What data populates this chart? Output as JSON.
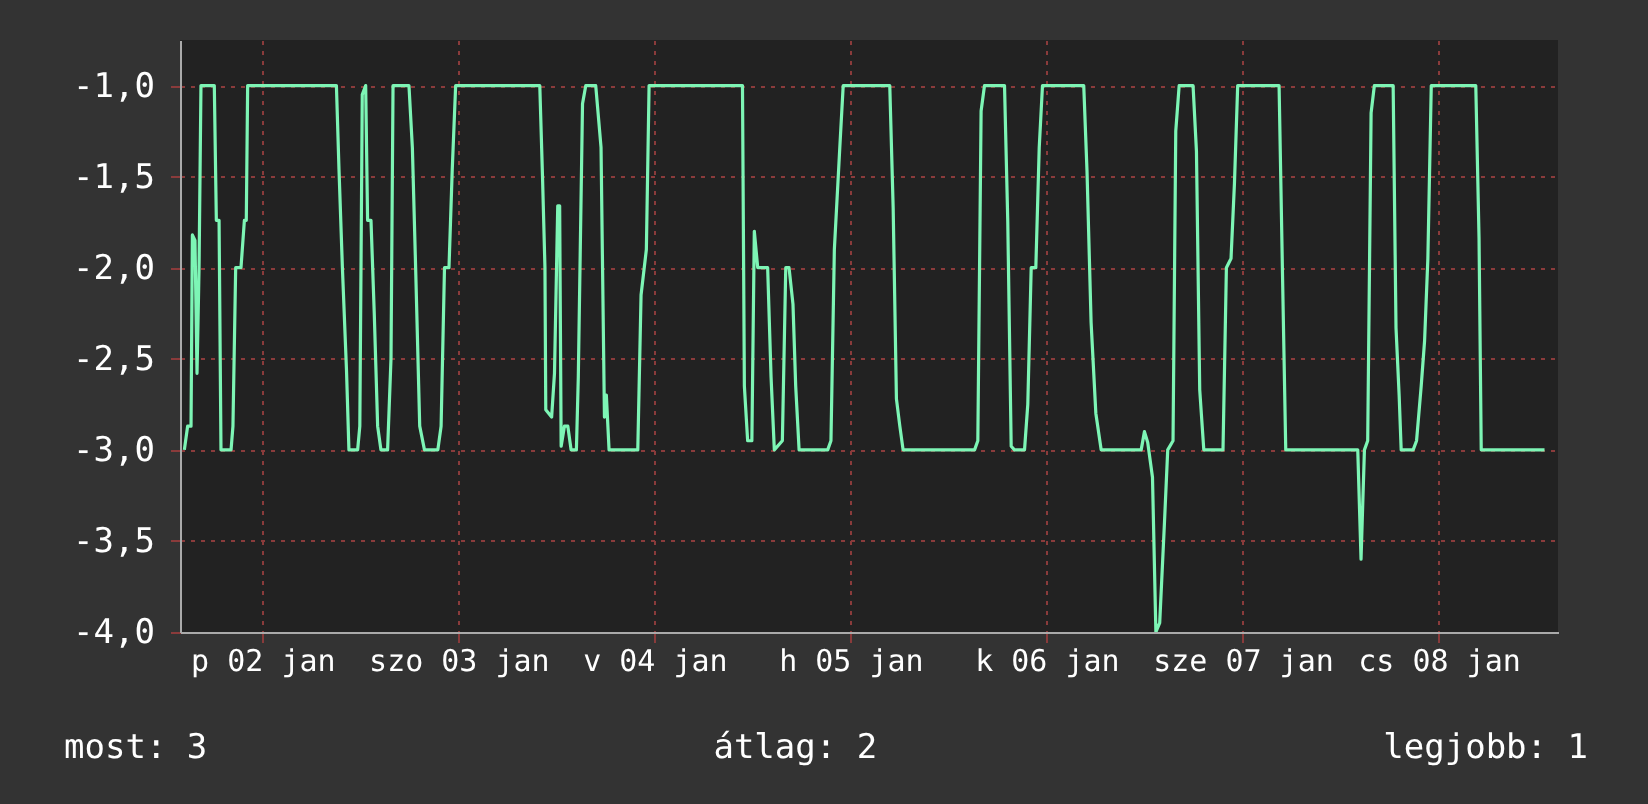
{
  "chart_data": {
    "type": "line",
    "x": [
      "--01-01T14:27",
      "--01-01T14:51",
      "--01-01T15:16",
      "--01-01T15:26",
      "--01-01T15:45",
      "--01-01T16:00",
      "--01-01T16:15",
      "--01-01T16:29",
      "--01-01T18:07",
      "--01-01T18:22",
      "--01-01T18:42",
      "--01-01T18:56",
      "--01-01T20:10",
      "--01-01T20:24",
      "--01-01T20:44",
      "--01-01T21:23",
      "--01-01T21:48",
      "--01-01T22:02",
      "--01-01T22:12",
      "--01-02T09:04",
      "--01-02T09:23",
      "--01-02T09:48",
      "--01-02T10:18",
      "--01-02T10:36",
      "--01-02T11:40",
      "--01-02T11:56",
      "--01-02T12:14",
      "--01-02T12:39",
      "--01-02T12:53",
      "--01-02T13:18",
      "--01-02T13:42",
      "--01-02T14:07",
      "--01-02T14:31",
      "--01-02T15:20",
      "--01-02T15:45",
      "--01-02T16:00",
      "--01-02T17:57",
      "--01-02T18:22",
      "--01-02T18:46",
      "--01-02T19:16",
      "--01-02T19:51",
      "--01-02T21:29",
      "--01-02T21:53",
      "--01-02T22:18",
      "--01-02T22:51",
      "--01-02T23:15",
      "--01-02T23:40",
      "--01-03T09:58",
      "--01-03T10:18",
      "--01-03T10:36",
      "--01-03T10:42",
      "--01-03T11:25",
      "--01-03T11:46",
      "--01-03T12:10",
      "--01-03T12:24",
      "--01-03T12:35",
      "--01-03T12:59",
      "--01-03T13:24",
      "--01-03T13:48",
      "--01-03T14:27",
      "--01-03T14:41",
      "--01-03T15:12",
      "--01-03T15:36",
      "--01-03T16:49",
      "--01-03T17:28",
      "--01-03T17:53",
      "--01-03T18:07",
      "--01-03T18:27",
      "--01-03T21:58",
      "--01-03T22:22",
      "--01-03T23:01",
      "--01-03T23:21",
      "--01-04T10:47",
      "--01-04T11:01",
      "--01-04T11:25",
      "--01-04T11:56",
      "--01-04T12:14",
      "--01-04T12:39",
      "--01-04T13:52",
      "--01-04T14:17",
      "--01-04T14:41",
      "--01-04T15:40",
      "--01-04T16:05",
      "--01-04T16:29",
      "--01-04T16:58",
      "--01-04T17:18",
      "--01-04T17:43",
      "--01-04T21:13",
      "--01-04T21:37",
      "--01-04T22:02",
      "--01-04T22:42",
      "--01-04T23:07",
      "--01-05T04:49",
      "--01-05T05:14",
      "--01-05T05:38",
      "--01-05T06:03",
      "--01-05T06:27",
      "--01-05T15:12",
      "--01-05T15:36",
      "--01-05T16:00",
      "--01-05T16:25",
      "--01-05T18:52",
      "--01-05T19:16",
      "--01-05T19:41",
      "--01-05T20:05",
      "--01-05T21:19",
      "--01-05T21:43",
      "--01-05T22:08",
      "--01-05T22:42",
      "--01-05T23:07",
      "--01-05T23:31",
      "--01-06T04:34",
      "--01-06T04:58",
      "--01-06T05:28",
      "--01-06T06:03",
      "--01-06T06:42",
      "--01-06T11:36",
      "--01-06T12:00",
      "--01-06T12:24",
      "--01-06T12:59",
      "--01-06T13:24",
      "--01-06T13:52",
      "--01-06T14:27",
      "--01-06T14:51",
      "--01-06T15:30",
      "--01-06T15:50",
      "--01-06T16:15",
      "--01-06T17:57",
      "--01-06T18:22",
      "--01-06T18:46",
      "--01-06T19:16",
      "--01-06T21:37",
      "--01-06T22:02",
      "--01-06T22:36",
      "--01-06T23:01",
      "--01-06T23:25",
      "--01-07T04:29",
      "--01-07T04:54",
      "--01-07T05:18",
      "--01-07T14:07",
      "--01-07T14:31",
      "--01-07T14:56",
      "--01-07T15:20",
      "--01-07T15:45",
      "--01-07T16:09",
      "--01-07T18:27",
      "--01-07T18:48",
      "--01-07T19:11",
      "--01-07T19:26",
      "--01-07T20:54",
      "--01-07T21:19",
      "--01-07T21:53",
      "--01-07T22:18",
      "--01-07T22:42",
      "--01-07T23:07",
      "--01-08T04:34",
      "--01-08T04:58",
      "--01-08T05:14",
      "--01-08T12:59"
    ],
    "series": [
      {
        "color": "#7df5b5",
        "values": [
          -3.0,
          -2.87,
          -2.87,
          -1.82,
          -1.85,
          -2.58,
          -2.0,
          -1.0,
          -1.0,
          -1.74,
          -1.74,
          -3.0,
          -3.0,
          -2.87,
          -2.0,
          -2.0,
          -1.74,
          -1.74,
          -1.0,
          -1.0,
          -1.46,
          -2.0,
          -2.56,
          -3.0,
          -3.0,
          -2.87,
          -1.05,
          -1.0,
          -1.74,
          -1.74,
          -2.25,
          -2.87,
          -3.0,
          -3.0,
          -2.5,
          -1.0,
          -1.0,
          -1.34,
          -2.0,
          -2.87,
          -3.0,
          -3.0,
          -2.87,
          -2.0,
          -2.0,
          -1.46,
          -1.0,
          -1.0,
          -1.5,
          -2.0,
          -2.78,
          -2.82,
          -2.58,
          -1.66,
          -1.66,
          -2.98,
          -2.87,
          -2.87,
          -3.0,
          -3.0,
          -2.6,
          -1.1,
          -1.0,
          -1.0,
          -1.34,
          -2.82,
          -2.7,
          -3.0,
          -3.0,
          -2.15,
          -1.9,
          -1.0,
          -1.0,
          -2.65,
          -2.95,
          -2.95,
          -1.8,
          -2.0,
          -2.0,
          -2.6,
          -3.0,
          -2.95,
          -2.0,
          -2.0,
          -2.2,
          -2.65,
          -3.0,
          -3.0,
          -2.95,
          -1.9,
          -1.34,
          -1.0,
          -1.0,
          -1.67,
          -2.72,
          -2.87,
          -3.0,
          -3.0,
          -2.95,
          -1.14,
          -1.0,
          -1.0,
          -1.75,
          -2.98,
          -3.0,
          -3.0,
          -2.75,
          -2.0,
          -2.0,
          -1.34,
          -1.0,
          -1.0,
          -1.47,
          -2.3,
          -2.8,
          -3.0,
          -3.0,
          -2.9,
          -2.96,
          -3.15,
          -4.0,
          -3.95,
          -3.4,
          -3.0,
          -2.95,
          -1.25,
          -1.0,
          -1.0,
          -1.36,
          -2.67,
          -3.0,
          -3.0,
          -2.0,
          -1.95,
          -1.54,
          -1.0,
          -1.0,
          -2.03,
          -3.0,
          -3.0,
          -3.6,
          -3.0,
          -2.95,
          -1.15,
          -1.0,
          -1.0,
          -2.33,
          -2.7,
          -3.0,
          -3.0,
          -2.95,
          -2.65,
          -2.4,
          -1.95,
          -1.0,
          -1.0,
          -1.84,
          -3.0,
          -3.0
        ]
      }
    ],
    "xlim": [
      "--01-01T13:55",
      "--01-08T14:38"
    ],
    "xticks": [
      {
        "value": "--01-02",
        "label": "p 02 jan"
      },
      {
        "value": "--01-03",
        "label": "szo 03 jan"
      },
      {
        "value": "--01-04",
        "label": "v 04 jan"
      },
      {
        "value": "--01-05",
        "label": "h 05 jan"
      },
      {
        "value": "--01-06",
        "label": "k 06 jan"
      },
      {
        "value": "--01-07",
        "label": "sze 07 jan"
      },
      {
        "value": "--01-08",
        "label": "cs 08 jan"
      }
    ],
    "ylim": [
      -4.0,
      -0.75
    ],
    "yticks": [
      {
        "value": -4,
        "label": "-4,0"
      },
      {
        "value": -3.5,
        "label": "-3,5"
      },
      {
        "value": -3,
        "label": "-3,0"
      },
      {
        "value": -2.5,
        "label": "-2,5"
      },
      {
        "value": -2,
        "label": "-2,0"
      },
      {
        "value": -1.5,
        "label": "-1,5"
      },
      {
        "value": -1,
        "label": "-1,0"
      }
    ],
    "grid": true,
    "marker": "none",
    "line_style": "solid",
    "annotations": [
      "most: 3",
      "átlag: 2",
      "legjobb: 1"
    ]
  }
}
